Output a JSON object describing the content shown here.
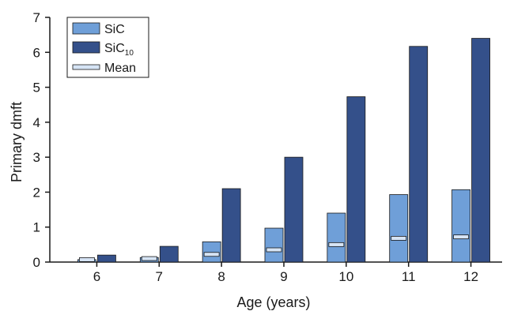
{
  "chart_data": {
    "type": "bar",
    "title": "",
    "xlabel": "Age (years)",
    "ylabel": "Primary dmft",
    "categories": [
      "6",
      "7",
      "8",
      "9",
      "10",
      "11",
      "12"
    ],
    "ylim": [
      0,
      7
    ],
    "yticks": [
      "0",
      "1",
      "2",
      "3",
      "4",
      "5",
      "6",
      "7"
    ],
    "grid": false,
    "legend_position": "top-left",
    "series": [
      {
        "name": "SiC",
        "name_base": "SiC",
        "name_sub": "",
        "type": "bar",
        "color": "#6f9fd8",
        "values": [
          0.07,
          0.13,
          0.58,
          0.97,
          1.4,
          1.93,
          2.07
        ]
      },
      {
        "name": "SiC10",
        "name_base": "SiC",
        "name_sub": "10",
        "type": "bar",
        "color": "#34508a",
        "values": [
          0.2,
          0.45,
          2.1,
          3.0,
          4.73,
          6.17,
          6.4
        ]
      },
      {
        "name": "Mean",
        "name_base": "Mean",
        "name_sub": "",
        "type": "marker",
        "color": "#d6e4f5",
        "values": [
          0.07,
          0.1,
          0.22,
          0.35,
          0.5,
          0.68,
          0.72
        ]
      }
    ]
  }
}
